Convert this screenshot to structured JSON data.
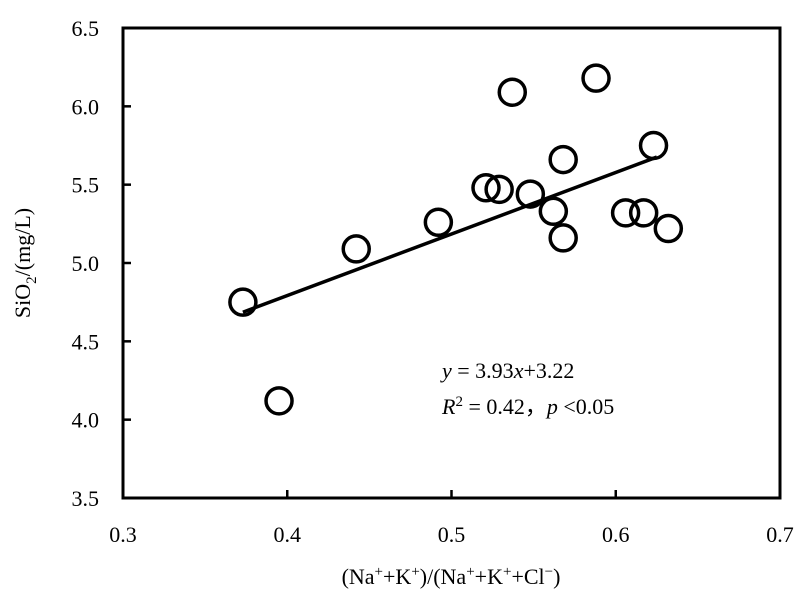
{
  "chart_data": {
    "type": "scatter",
    "x_ticks": [
      "0.3",
      "0.4",
      "0.5",
      "0.6",
      "0.7"
    ],
    "y_ticks": [
      "3.5",
      "4.0",
      "4.5",
      "5.0",
      "5.5",
      "6.0",
      "6.5"
    ],
    "xlim": [
      0.3,
      0.7
    ],
    "ylim": [
      3.5,
      6.5
    ],
    "xlabel": {
      "pre": "(Na",
      "sup1": "+",
      "mid1": "+K",
      "sup2": "+",
      "mid2": ")/(Na",
      "sup3": "+",
      "mid3": "+K",
      "sup4": "+",
      "mid4": "+Cl",
      "sup5": "−",
      "post": ")"
    },
    "ylabel": {
      "pre": "SiO",
      "sub": "2",
      "post": "/(mg/L)"
    },
    "points": [
      {
        "x": 0.373,
        "y": 4.75
      },
      {
        "x": 0.395,
        "y": 4.12
      },
      {
        "x": 0.442,
        "y": 5.09
      },
      {
        "x": 0.492,
        "y": 5.26
      },
      {
        "x": 0.521,
        "y": 5.48
      },
      {
        "x": 0.529,
        "y": 5.47
      },
      {
        "x": 0.537,
        "y": 6.09
      },
      {
        "x": 0.548,
        "y": 5.44
      },
      {
        "x": 0.562,
        "y": 5.33
      },
      {
        "x": 0.568,
        "y": 5.66
      },
      {
        "x": 0.568,
        "y": 5.16
      },
      {
        "x": 0.588,
        "y": 6.18
      },
      {
        "x": 0.606,
        "y": 5.32
      },
      {
        "x": 0.617,
        "y": 5.32
      },
      {
        "x": 0.623,
        "y": 5.75
      },
      {
        "x": 0.632,
        "y": 5.22
      }
    ],
    "fit": {
      "slope": 3.93,
      "intercept": 3.22,
      "x_range": [
        0.373,
        0.625
      ]
    },
    "annotation": {
      "line1": {
        "v1": "y",
        "op1": " = 3.93",
        "v2": "x",
        "op2": "+3.22"
      },
      "line2": {
        "v1": "R",
        "sup": "2",
        "op1": " = 0.42，",
        "v2": "p",
        "op2": " <0.05"
      }
    },
    "grid": false,
    "legend": "none"
  }
}
